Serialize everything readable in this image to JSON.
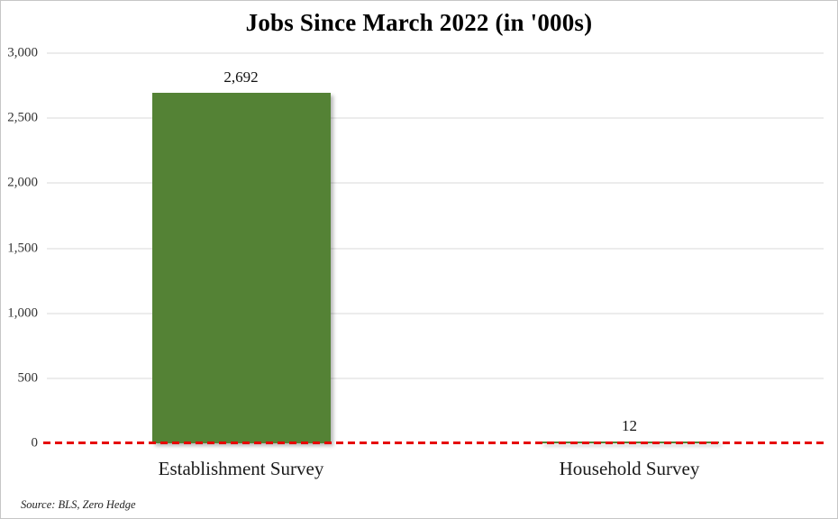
{
  "chart_data": {
    "type": "bar",
    "title": "Jobs Since March 2022 (in '000s)",
    "categories": [
      "Establishment Survey",
      "Household Survey"
    ],
    "values": [
      2692,
      12
    ],
    "value_labels": [
      "2,692",
      "12"
    ],
    "ylim": [
      0,
      3000
    ],
    "yticks": [
      {
        "value": 0,
        "label": "0"
      },
      {
        "value": 500,
        "label": "500"
      },
      {
        "value": 1000,
        "label": "1,000"
      },
      {
        "value": 1500,
        "label": "1,500"
      },
      {
        "value": 2000,
        "label": "2,000"
      },
      {
        "value": 2500,
        "label": "2,500"
      },
      {
        "value": 3000,
        "label": "3,000"
      }
    ],
    "grid": "horizontal gridlines on",
    "legend": "none",
    "bar_color": "#548235",
    "zero_line_color": "#e60000",
    "zero_line_style": "dashed",
    "gridline_color": "#d9d9d9",
    "source_note": "Source: BLS, Zero Hedge"
  }
}
